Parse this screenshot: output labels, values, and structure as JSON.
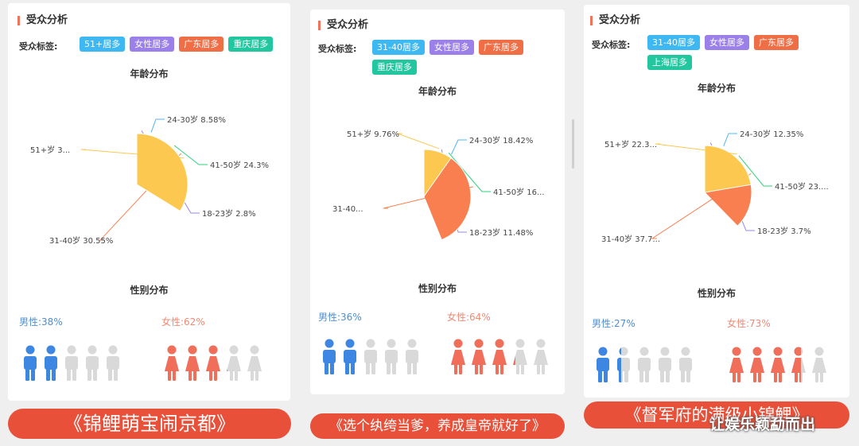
{
  "colors": {
    "series": [
      "#50b5f7",
      "#2ed37b",
      "#9c82f3",
      "#f97f51",
      "#fcc84f"
    ],
    "male": "#3d86e1",
    "female": "#f06e5a",
    "inactive": "#d9d9d9",
    "banner": "#e8503a"
  },
  "panels": [
    {
      "section_title": "受众分析",
      "tags_label": "受众标签:",
      "tags": [
        {
          "label": "51+居多",
          "color": "#3eb8f2"
        },
        {
          "label": "女性居多",
          "color": "#9b80ea"
        },
        {
          "label": "广东居多",
          "color": "#f06e46"
        },
        {
          "label": "重庆居多",
          "color": "#22c7a0"
        }
      ],
      "age_title": "年龄分布",
      "chart_data": {
        "type": "pie",
        "categories": [
          "24-30岁",
          "41-50岁",
          "18-23岁",
          "31-40岁",
          "51+岁"
        ],
        "values": [
          8.58,
          24.3,
          2.8,
          30.55,
          33.77
        ],
        "labels": [
          "24-30岁 8.58%",
          "41-50岁 24.3%",
          "18-23岁 2.8%",
          "31-40岁 30.55%",
          "51+岁 3..."
        ]
      },
      "gender_title": "性别分布",
      "male": {
        "label": "男性:",
        "value": "38%",
        "icons_filled": 2
      },
      "female": {
        "label": "女性:",
        "value": "62%",
        "icons_filled": 3.1
      },
      "banner": "《锦鲤萌宝闹京都》"
    },
    {
      "section_title": "受众分析",
      "tags_label": "受众标签:",
      "tags": [
        {
          "label": "31-40居多",
          "color": "#3eb8f2"
        },
        {
          "label": "女性居多",
          "color": "#9b80ea"
        },
        {
          "label": "广东居多",
          "color": "#f06e46"
        },
        {
          "label": "重庆居多",
          "color": "#22c7a0"
        }
      ],
      "age_title": "年龄分布",
      "chart_data": {
        "type": "pie",
        "categories": [
          "24-30岁",
          "41-50岁",
          "18-23岁",
          "31-40岁",
          "51+岁"
        ],
        "values": [
          18.42,
          16.5,
          11.48,
          43.84,
          9.76
        ],
        "labels": [
          "24-30岁 18.42%",
          "41-50岁 16...",
          "18-23岁 11.48%",
          "31-40...",
          "51+岁 9.76%"
        ]
      },
      "gender_title": "性别分布",
      "male": {
        "label": "男性:",
        "value": "36%",
        "icons_filled": 2
      },
      "female": {
        "label": "女性:",
        "value": "64%",
        "icons_filled": 3.2
      },
      "banner": "《选个纨绔当爹，养成皇帝就好了》"
    },
    {
      "section_title": "受众分析",
      "tags_label": "受众标签:",
      "tags": [
        {
          "label": "31-40居多",
          "color": "#3eb8f2"
        },
        {
          "label": "女性居多",
          "color": "#9b80ea"
        },
        {
          "label": "广东居多",
          "color": "#f06e46"
        },
        {
          "label": "上海居多",
          "color": "#22c7a0"
        }
      ],
      "age_title": "年龄分布",
      "chart_data": {
        "type": "pie",
        "categories": [
          "24-30岁",
          "41-50岁",
          "18-23岁",
          "31-40岁",
          "51+岁"
        ],
        "values": [
          12.35,
          23.9,
          3.7,
          37.7,
          22.35
        ],
        "labels": [
          "24-30岁 12.35%",
          "41-50岁 23....",
          "18-23岁 3.7%",
          "31-40岁 37.7...",
          "51+岁 22.3..."
        ]
      },
      "gender_title": "性别分布",
      "male": {
        "label": "男性:",
        "value": "27%",
        "icons_filled": 1.35
      },
      "female": {
        "label": "女性:",
        "value": "73%",
        "icons_filled": 3.65
      },
      "banner": "《督军府的满级小锦鲤》"
    }
  ],
  "watermark": "让娱乐颖勐而出"
}
